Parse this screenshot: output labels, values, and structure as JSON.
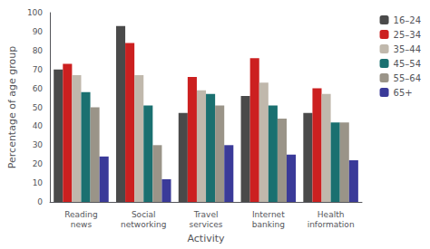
{
  "chart_data": {
    "type": "bar",
    "categories": [
      "Reading\nnews",
      "Social\nnetworking",
      "Travel\nservices",
      "Internet\nbanking",
      "Health\ninformation"
    ],
    "series": [
      {
        "name": "16–24",
        "color": "#4a4a4a",
        "values": [
          70,
          93,
          47,
          56,
          47
        ]
      },
      {
        "name": "25–34",
        "color": "#cc2020",
        "values": [
          73,
          84,
          66,
          76,
          60
        ]
      },
      {
        "name": "35–44",
        "color": "#c0b8ac",
        "values": [
          67,
          67,
          59,
          63,
          57
        ]
      },
      {
        "name": "45–54",
        "color": "#1a7070",
        "values": [
          58,
          51,
          57,
          51,
          42
        ]
      },
      {
        "name": "55–64",
        "color": "#9a9488",
        "values": [
          50,
          30,
          51,
          44,
          42
        ]
      },
      {
        "name": "65+",
        "color": "#3a3a99",
        "values": [
          24,
          12,
          30,
          25,
          22
        ]
      }
    ],
    "xlabel": "Activity",
    "ylabel": "Percentage of age group",
    "ylim": [
      0,
      100
    ],
    "yticks": [
      0,
      10,
      20,
      30,
      40,
      50,
      60,
      70,
      80,
      90,
      100
    ],
    "grid": false,
    "legend": "upper right"
  }
}
